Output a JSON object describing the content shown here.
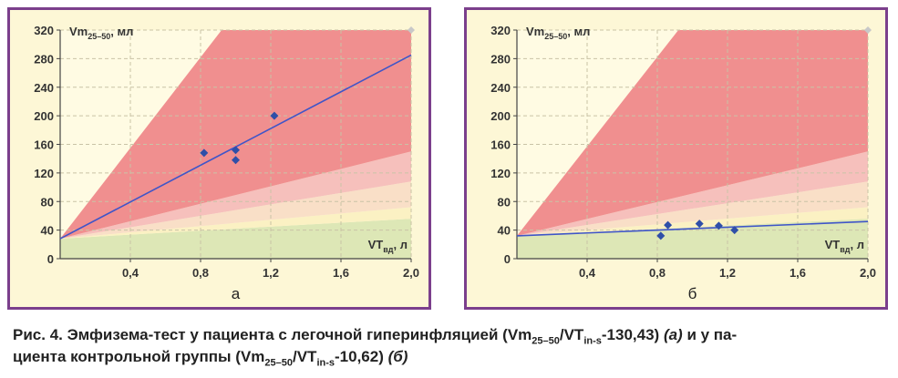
{
  "colors": {
    "frame": "#7b3f8c",
    "background": "#fdf7d6",
    "zone_red": "#f08f8f",
    "zone_pink": "#f6c0bc",
    "zone_peach": "#f9dfc7",
    "zone_yellow": "#fbf1c3",
    "zone_green": "#dde7b6",
    "line": "#3f55c8",
    "points": "#2f4fa8"
  },
  "caption": {
    "prefix": "Рис. 4. Эмфизема-тест у пациента с легочной гиперинфляцией (Vm",
    "sub1": "25–50",
    "part2": "/VT",
    "sub2": "in-s",
    "part3": "-130,43) ",
    "em1": "(а)",
    "part4": " и у па-",
    "line2": "циента контрольной группы (Vm",
    "sub3": "25–50",
    "part5": "/VT",
    "sub4": "in-s",
    "part6": "-10,62) ",
    "em2": "(б)"
  },
  "chart_data": [
    {
      "type": "scatter",
      "panel_label": "а",
      "ylabel_main": "Vm",
      "ylabel_sub": "25–50",
      "ylabel_unit": ", мл",
      "xlabel_main": "VT",
      "xlabel_sub": "вд",
      "xlabel_unit": ", л",
      "xlim": [
        0,
        2.0
      ],
      "ylim": [
        0,
        320
      ],
      "x_ticks": [
        0.4,
        0.8,
        1.2,
        1.6,
        2.0
      ],
      "x_tick_labels": [
        "0,4",
        "0,8",
        "1,2",
        "1,6",
        "2,0"
      ],
      "y_ticks": [
        0,
        40,
        80,
        120,
        160,
        200,
        240,
        280,
        320
      ],
      "y_tick_labels": [
        "0",
        "40",
        "80",
        "120",
        "160",
        "200",
        "240",
        "280",
        "320"
      ],
      "grid": true,
      "points": [
        {
          "x": 0.82,
          "y": 148
        },
        {
          "x": 1.0,
          "y": 152
        },
        {
          "x": 1.0,
          "y": 138
        },
        {
          "x": 1.22,
          "y": 200
        }
      ],
      "regression_line": {
        "x": [
          0,
          2.0
        ],
        "y": [
          28,
          285
        ]
      }
    },
    {
      "type": "scatter",
      "panel_label": "б",
      "ylabel_main": "Vm",
      "ylabel_sub": "25–50",
      "ylabel_unit": ", мл",
      "xlabel_main": "VT",
      "xlabel_sub": "вд",
      "xlabel_unit": ", л",
      "xlim": [
        0,
        2.0
      ],
      "ylim": [
        0,
        320
      ],
      "x_ticks": [
        0.4,
        0.8,
        1.2,
        1.6,
        2.0
      ],
      "x_tick_labels": [
        "0,4",
        "0,8",
        "1,2",
        "1,6",
        "2,0"
      ],
      "y_ticks": [
        0,
        40,
        80,
        120,
        160,
        200,
        240,
        280,
        320
      ],
      "y_tick_labels": [
        "0",
        "40",
        "80",
        "120",
        "160",
        "200",
        "240",
        "280",
        "320"
      ],
      "grid": true,
      "points": [
        {
          "x": 0.82,
          "y": 32
        },
        {
          "x": 0.86,
          "y": 47
        },
        {
          "x": 1.04,
          "y": 49
        },
        {
          "x": 1.15,
          "y": 46
        },
        {
          "x": 1.24,
          "y": 40
        }
      ],
      "regression_line": {
        "x": [
          0,
          2.0
        ],
        "y": [
          32,
          52
        ]
      }
    }
  ]
}
